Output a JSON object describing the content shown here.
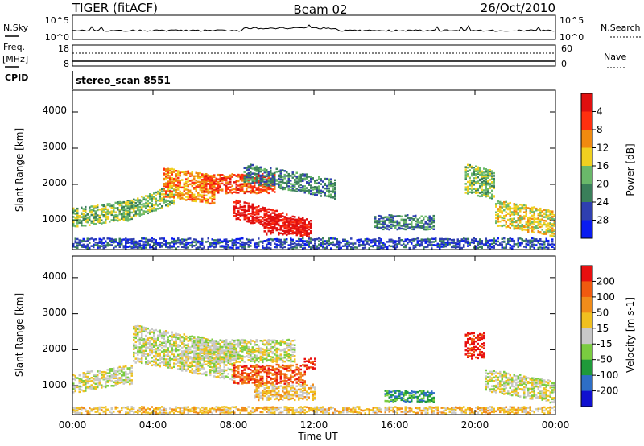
{
  "header": {
    "title": "TIGER (fitACF)",
    "beam": "Beam 02",
    "date": "26/Oct/2010"
  },
  "summary": {
    "nsky_label": "N.Sky",
    "nsky_ticks": [
      "10^5",
      "10^0"
    ],
    "nsearch_label": "N.Search",
    "nsearch_ticks": [
      "10^5",
      "10^0"
    ],
    "freq_label_1": "Freq.",
    "freq_label_2": "[MHz]",
    "freq_ticks": [
      "18",
      "8"
    ],
    "nave_label": "Nave",
    "nave_ticks": [
      "60",
      "0"
    ],
    "cpid_label": "CPID",
    "cpid_text": "stereo_scan 8551"
  },
  "colors": {
    "power": [
      "#0a1cf0",
      "#2f3fb0",
      "#3a7f5a",
      "#6ab86a",
      "#f0d020",
      "#f08a10",
      "#ff3010",
      "#e01010"
    ],
    "velocity": [
      "#1010d0",
      "#2e6ec6",
      "#1f9a3a",
      "#7acc40",
      "#c8c8c8",
      "#f0c020",
      "#f08c1a",
      "#f05a10",
      "#e81010"
    ],
    "trace": "#000000"
  },
  "chart_data": [
    {
      "type": "heatmap",
      "name": "power",
      "ylabel": "Slant Range [km]",
      "yticks": [
        "1000",
        "2000",
        "3000",
        "4000"
      ],
      "ylim": [
        200,
        4600
      ],
      "xlim": [
        0,
        24
      ],
      "colorbar": {
        "label": "Power [dB]",
        "ticks": [
          "4",
          "8",
          "12",
          "16",
          "20",
          "24",
          "28"
        ]
      },
      "bands": [
        {
          "t0": 0.0,
          "t1": 3.0,
          "r0": 850,
          "r1": 1350,
          "slope": 80,
          "level": 3
        },
        {
          "t0": 2.5,
          "t1": 5.0,
          "r0": 1000,
          "r1": 1500,
          "slope": 200,
          "level": 3
        },
        {
          "t0": 4.5,
          "t1": 7.0,
          "r0": 1700,
          "r1": 2500,
          "slope": -80,
          "level": 5
        },
        {
          "t0": 6.5,
          "t1": 10.0,
          "r0": 1800,
          "r1": 2300,
          "slope": 0,
          "level": 6
        },
        {
          "t0": 8.0,
          "t1": 11.8,
          "r0": 1100,
          "r1": 1600,
          "slope": -150,
          "level": 7
        },
        {
          "t0": 9.5,
          "t1": 11.5,
          "r0": 650,
          "r1": 1100,
          "slope": 0,
          "level": 7
        },
        {
          "t0": 8.5,
          "t1": 13.0,
          "r0": 2100,
          "r1": 2600,
          "slope": -100,
          "level": 2
        },
        {
          "t0": 0.0,
          "t1": 24.0,
          "r0": 200,
          "r1": 550,
          "slope": 0,
          "level": 1
        },
        {
          "t0": 15.0,
          "t1": 18.0,
          "r0": 800,
          "r1": 1200,
          "slope": 0,
          "level": 2
        },
        {
          "t0": 19.5,
          "t1": 21.0,
          "r0": 1800,
          "r1": 2600,
          "slope": -120,
          "level": 3
        },
        {
          "t0": 21.0,
          "t1": 24.0,
          "r0": 900,
          "r1": 1600,
          "slope": -100,
          "level": 4
        }
      ]
    },
    {
      "type": "heatmap",
      "name": "velocity",
      "ylabel": "Slant Range [km]",
      "yticks": [
        "1000",
        "2000",
        "3000",
        "4000"
      ],
      "ylim": [
        200,
        4600
      ],
      "xlim": [
        0,
        24
      ],
      "xticks": [
        "00:00",
        "04:00",
        "08:00",
        "12:00",
        "16:00",
        "20:00",
        "00:00"
      ],
      "xlabel": "Time UT",
      "colorbar": {
        "label": "Velocity [m s-1]",
        "ticks": [
          "200",
          "100",
          "50",
          "15",
          "-15",
          "-50",
          "-100",
          "-200"
        ]
      },
      "bands": [
        {
          "t0": 0.0,
          "t1": 3.0,
          "r0": 850,
          "r1": 1350,
          "slope": 80,
          "level": 4
        },
        {
          "t0": 3.0,
          "t1": 8.0,
          "r0": 1700,
          "r1": 2700,
          "slope": -100,
          "level": 4
        },
        {
          "t0": 6.0,
          "t1": 11.0,
          "r0": 1700,
          "r1": 2300,
          "slope": 0,
          "level": 4
        },
        {
          "t0": 8.0,
          "t1": 11.5,
          "r0": 1100,
          "r1": 1600,
          "slope": 0,
          "level": 7
        },
        {
          "t0": 9.0,
          "t1": 12.0,
          "r0": 650,
          "r1": 1100,
          "slope": 0,
          "level": 5
        },
        {
          "t0": 11.5,
          "t1": 12.0,
          "r0": 1500,
          "r1": 1800,
          "slope": 0,
          "level": 8
        },
        {
          "t0": 0.0,
          "t1": 24.0,
          "r0": 200,
          "r1": 450,
          "slope": 0,
          "level": 5
        },
        {
          "t0": 15.5,
          "t1": 18.0,
          "r0": 600,
          "r1": 900,
          "slope": 0,
          "level": 2
        },
        {
          "t0": 19.5,
          "t1": 20.5,
          "r0": 1800,
          "r1": 2500,
          "slope": 0,
          "level": 8
        },
        {
          "t0": 20.5,
          "t1": 24.0,
          "r0": 900,
          "r1": 1500,
          "slope": -100,
          "level": 4
        }
      ]
    }
  ]
}
